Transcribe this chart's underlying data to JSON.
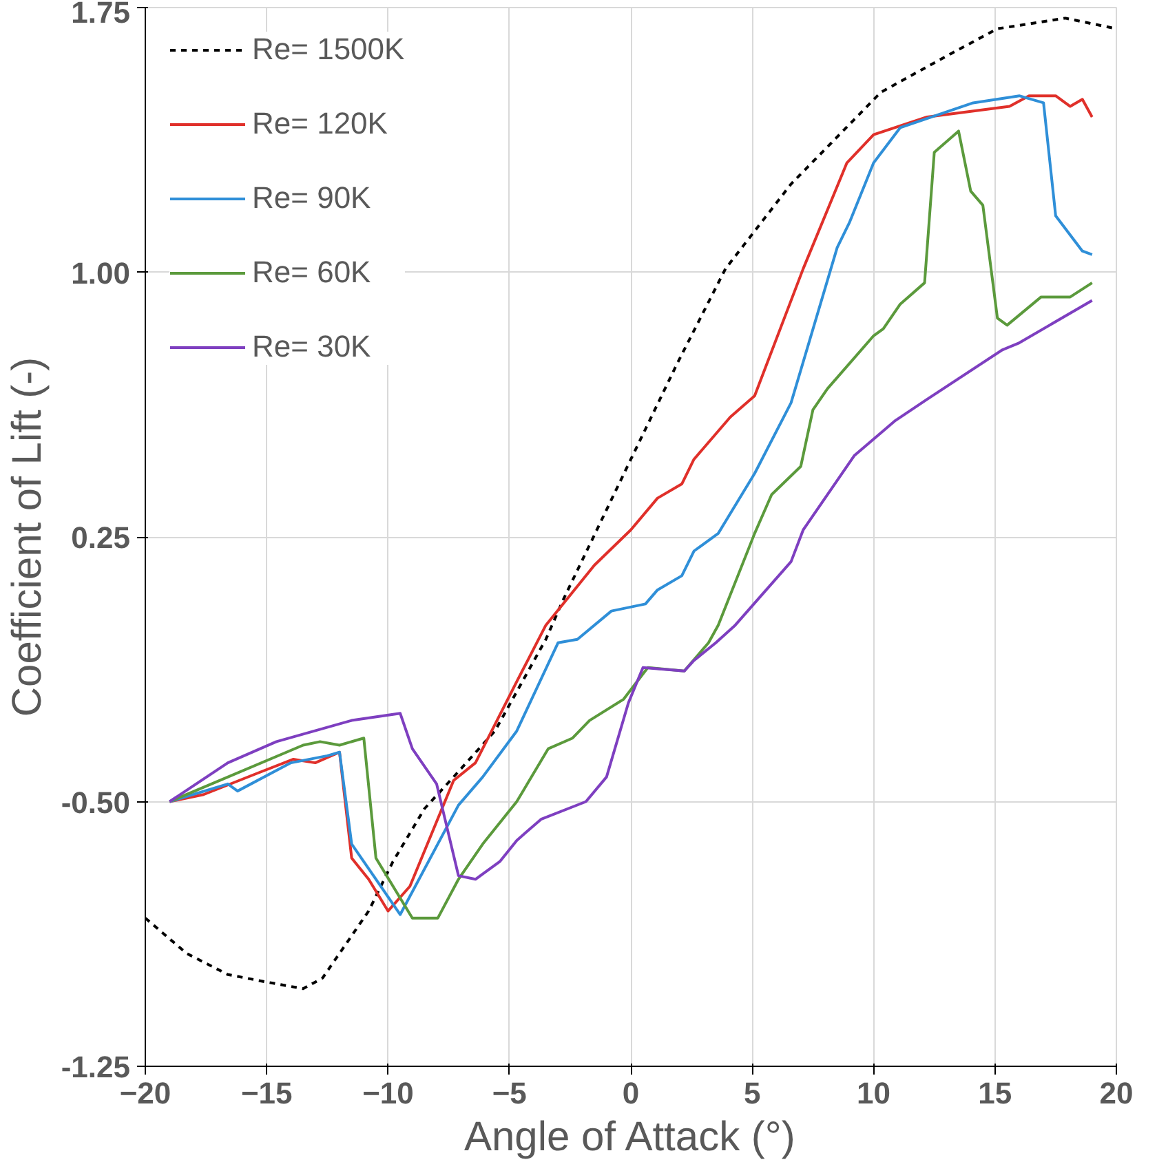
{
  "chart_data": {
    "type": "line",
    "xlabel": "Angle of Attack (°)",
    "ylabel": "Coefficient of Lift (-)",
    "xlim": [
      -20,
      20
    ],
    "ylim": [
      -1.25,
      1.75
    ],
    "xticks": [
      -20,
      -15,
      -10,
      -5,
      0,
      5,
      10,
      15,
      20
    ],
    "yticks": [
      {
        "value": -1.25,
        "label": "-1.25"
      },
      {
        "value": -0.5,
        "label": "-0.50"
      },
      {
        "value": 0.25,
        "label": "0.25"
      },
      {
        "value": 1.0,
        "label": "1.00"
      },
      {
        "value": 1.75,
        "label": "1.75"
      }
    ],
    "grid": true,
    "legend": "top left",
    "marker": "none",
    "series": [
      {
        "name": "Re= 1500K",
        "color": "#000000",
        "line_style": "dashed",
        "x": [
          -20,
          -18.3,
          -16.6,
          -15.1,
          -13.5,
          -12.7,
          -11.9,
          -10.8,
          -9.8,
          -8.5,
          -7.3,
          -5.6,
          -3.5,
          -2.8,
          0,
          1.9,
          3.9,
          6.6,
          10.3,
          13.2,
          15.1,
          17.9,
          20
        ],
        "values": [
          -0.83,
          -0.93,
          -0.99,
          -1.01,
          -1.03,
          -1.0,
          -0.92,
          -0.81,
          -0.67,
          -0.52,
          -0.43,
          -0.3,
          -0.04,
          0.07,
          0.47,
          0.74,
          1.01,
          1.25,
          1.51,
          1.62,
          1.69,
          1.72,
          1.69
        ]
      },
      {
        "name": "Re= 120K",
        "color": "#e0302a",
        "line_style": "solid",
        "x": [
          -19,
          -17.6,
          -15.4,
          -13.9,
          -13,
          -12,
          -11.5,
          -10.8,
          -10,
          -9.1,
          -7.3,
          -6.4,
          -4.7,
          -3.5,
          -1.5,
          0,
          1.1,
          2.1,
          2.6,
          4.1,
          5.1,
          7.1,
          8.9,
          10,
          12.2,
          15.6,
          16.4,
          17.5,
          18.1,
          18.6,
          19
        ],
        "values": [
          -0.5,
          -0.48,
          -0.42,
          -0.38,
          -0.39,
          -0.36,
          -0.66,
          -0.72,
          -0.81,
          -0.74,
          -0.44,
          -0.39,
          -0.16,
          0.0,
          0.17,
          0.27,
          0.36,
          0.4,
          0.47,
          0.59,
          0.65,
          1.01,
          1.31,
          1.39,
          1.44,
          1.47,
          1.5,
          1.5,
          1.47,
          1.49,
          1.44
        ]
      },
      {
        "name": "Re= 90K",
        "color": "#2f8fd8",
        "line_style": "solid",
        "x": [
          -19,
          -16.6,
          -16.2,
          -14,
          -12.5,
          -12,
          -11.5,
          -9.5,
          -7.1,
          -6.1,
          -4.7,
          -3,
          -2.2,
          -0.8,
          0.6,
          1.1,
          2.1,
          2.6,
          3.6,
          5.1,
          6.6,
          8.5,
          9,
          10,
          11.1,
          14.1,
          16,
          17,
          17.5,
          18.6,
          19
        ],
        "values": [
          -0.5,
          -0.45,
          -0.47,
          -0.39,
          -0.37,
          -0.36,
          -0.62,
          -0.82,
          -0.51,
          -0.43,
          -0.3,
          -0.05,
          -0.04,
          0.04,
          0.06,
          0.1,
          0.14,
          0.21,
          0.26,
          0.43,
          0.63,
          1.07,
          1.14,
          1.31,
          1.41,
          1.48,
          1.5,
          1.48,
          1.16,
          1.06,
          1.05
        ]
      },
      {
        "name": "Re= 60K",
        "color": "#5b9a3c",
        "line_style": "solid",
        "x": [
          -19,
          -13.5,
          -12.8,
          -12,
          -11,
          -10.5,
          -9,
          -7.95,
          -7.1,
          -6.1,
          -4.7,
          -3.4,
          -2.4,
          -1.7,
          -0.3,
          0.7,
          2.2,
          3.2,
          3.6,
          5.1,
          5.8,
          7,
          7.5,
          8.1,
          10,
          10.4,
          11.1,
          12.1,
          12.5,
          13.5,
          14,
          14.5,
          15.1,
          15.5,
          16.9,
          18.1,
          19
        ],
        "values": [
          -0.5,
          -0.34,
          -0.33,
          -0.34,
          -0.32,
          -0.66,
          -0.83,
          -0.83,
          -0.72,
          -0.62,
          -0.5,
          -0.35,
          -0.32,
          -0.27,
          -0.21,
          -0.12,
          -0.13,
          -0.05,
          0.0,
          0.26,
          0.37,
          0.45,
          0.61,
          0.67,
          0.82,
          0.84,
          0.91,
          0.97,
          1.34,
          1.4,
          1.23,
          1.19,
          0.87,
          0.85,
          0.93,
          0.93,
          0.97
        ]
      },
      {
        "name": "Re= 30K",
        "color": "#7e3fc0",
        "line_style": "solid",
        "x": [
          -19,
          -16.6,
          -14.6,
          -11.5,
          -9.5,
          -9,
          -8,
          -7.1,
          -6.4,
          -5.4,
          -4.7,
          -3.7,
          -1.85,
          -1,
          -0.1,
          0.5,
          2.2,
          2.6,
          3.5,
          4.3,
          6.6,
          7.1,
          9.2,
          10.9,
          12.2,
          15.3,
          16,
          19
        ],
        "values": [
          -0.5,
          -0.39,
          -0.33,
          -0.27,
          -0.25,
          -0.35,
          -0.45,
          -0.71,
          -0.72,
          -0.67,
          -0.61,
          -0.55,
          -0.5,
          -0.43,
          -0.22,
          -0.12,
          -0.13,
          -0.1,
          -0.05,
          0.0,
          0.18,
          0.27,
          0.48,
          0.58,
          0.64,
          0.78,
          0.8,
          0.92
        ]
      }
    ]
  }
}
